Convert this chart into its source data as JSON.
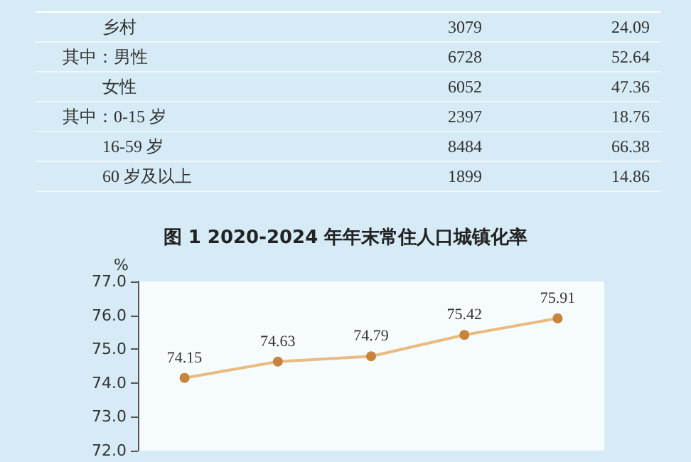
{
  "chart_data": {
    "type": "line",
    "title": "图 1  2020-2024 年年末常住人口城镇化率",
    "ylabel": "%",
    "annotations": [
      "乡村",
      "3079",
      "24.09",
      "其中：男性",
      "6728",
      "52.64",
      "女性",
      "6052",
      "47.36",
      "其中：0-15 岁",
      "2397",
      "18.76",
      "16-59 岁",
      "8484",
      "66.38",
      "60 岁及以上",
      "1899",
      "14.86"
    ],
    "categories": [
      null,
      null,
      null,
      null,
      null
    ],
    "values": [
      74.15,
      74.63,
      74.79,
      75.42,
      75.91
    ],
    "color": "#e9bb80",
    "marker": "circle",
    "data_labels": true,
    "ylim": [
      72,
      77
    ],
    "yticks": [
      {
        "value": 72,
        "label": "72.0"
      },
      {
        "value": 73,
        "label": "73.0"
      },
      {
        "value": 74,
        "label": "74.0"
      },
      {
        "value": 75,
        "label": "75.0"
      },
      {
        "value": 76,
        "label": "76.0"
      },
      {
        "value": 77,
        "label": "77.0"
      }
    ],
    "grid": false
  }
}
